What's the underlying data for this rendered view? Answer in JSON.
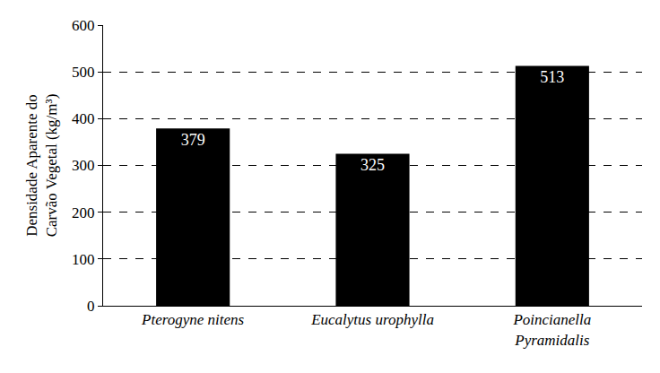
{
  "chart_data": {
    "type": "bar",
    "y_label": "Densidade Aparente do Carvão Vegetal (kg/m³)",
    "categories": [
      "Pterogyne nitens",
      "Eucalytus urophylla",
      "Poincianella Pyramidalis"
    ],
    "values": [
      379,
      325,
      513
    ],
    "color": "#000000",
    "ylim": [
      0,
      600
    ],
    "yticks": [
      0,
      100,
      200,
      300,
      400,
      500,
      600
    ],
    "grid": true,
    "data_labels": true
  }
}
